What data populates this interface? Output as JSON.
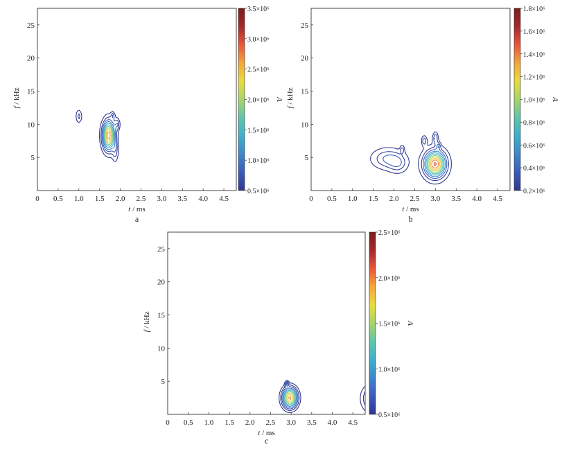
{
  "chart_data": [
    {
      "panel_label": "a",
      "type": "contour",
      "xlabel_italic": "t",
      "xlabel_unit": " / ms",
      "ylabel_italic": "f",
      "ylabel_unit": " / kHz",
      "xlim": [
        0,
        4.8
      ],
      "ylim": [
        0,
        27.5
      ],
      "xticks": [
        0,
        0.5,
        1.0,
        1.5,
        2.0,
        2.5,
        3.0,
        3.5,
        4.0,
        4.5
      ],
      "xticklabels": [
        "0",
        "0.5",
        "1.0",
        "1.5",
        "2.0",
        "2.5",
        "3.0",
        "3.5",
        "4.0",
        "4.5"
      ],
      "yticks": [
        5,
        10,
        15,
        20,
        25
      ],
      "yticklabels": [
        "5",
        "10",
        "15",
        "20",
        "25"
      ],
      "colorbar": {
        "label": "A",
        "range": [
          0.5,
          3.5
        ],
        "ticks": [
          0.5,
          1.0,
          1.5,
          2.0,
          2.5,
          3.0,
          3.5
        ],
        "ticklabels": [
          "0.5×10⁶",
          "1.0×10⁶",
          "1.5×10⁶",
          "2.0×10⁶",
          "2.5×10⁶",
          "3.0×10⁶",
          "3.5×10⁶"
        ]
      },
      "peaks": [
        {
          "t": 1.72,
          "f": 8.3,
          "sigma_t": 0.1,
          "sigma_f": 1.5,
          "amplitude": 2.9
        },
        {
          "t": 1.0,
          "f": 11.2,
          "sigma_t": 0.05,
          "sigma_f": 0.7,
          "amplitude": 0.62
        },
        {
          "t": 1.82,
          "f": 11.3,
          "sigma_t": 0.03,
          "sigma_f": 0.4,
          "amplitude": 0.58
        },
        {
          "t": 1.93,
          "f": 10.0,
          "sigma_t": 0.04,
          "sigma_f": 0.6,
          "amplitude": 0.7
        },
        {
          "t": 1.88,
          "f": 6.0,
          "sigma_t": 0.05,
          "sigma_f": 1.2,
          "amplitude": 0.6
        }
      ]
    },
    {
      "panel_label": "b",
      "type": "contour",
      "xlabel_italic": "t",
      "xlabel_unit": " / ms",
      "ylabel_italic": "f",
      "ylabel_unit": " / kHz",
      "xlim": [
        0,
        4.8
      ],
      "ylim": [
        0,
        27.5
      ],
      "xticks": [
        0,
        0.5,
        1.0,
        1.5,
        2.0,
        2.5,
        3.0,
        3.5,
        4.0,
        4.5
      ],
      "xticklabels": [
        "0",
        "0.5",
        "1.0",
        "1.5",
        "2.0",
        "2.5",
        "3.0",
        "3.5",
        "4.0",
        "4.5"
      ],
      "yticks": [
        5,
        10,
        15,
        20,
        25
      ],
      "yticklabels": [
        "5",
        "10",
        "15",
        "20",
        "25"
      ],
      "colorbar": {
        "label": "A",
        "range": [
          0.2,
          1.8
        ],
        "ticks": [
          0.2,
          0.4,
          0.6,
          0.8,
          1.0,
          1.2,
          1.4,
          1.6,
          1.8
        ],
        "ticklabels": [
          "0.2×10⁶",
          "0.4×10⁶",
          "0.6×10⁶",
          "0.8×10⁶",
          "1.0×10⁶",
          "1.2×10⁶",
          "1.4×10⁶",
          "1.6×10⁶",
          "1.8×10⁶"
        ]
      },
      "peaks": [
        {
          "t": 2.99,
          "f": 4.0,
          "sigma_t": 0.17,
          "sigma_f": 1.3,
          "amplitude": 1.55
        },
        {
          "t": 1.85,
          "f": 4.8,
          "sigma_t": 0.25,
          "sigma_f": 1.0,
          "amplitude": 0.42
        },
        {
          "t": 2.1,
          "f": 4.0,
          "sigma_t": 0.15,
          "sigma_f": 0.9,
          "amplitude": 0.28
        },
        {
          "t": 2.73,
          "f": 7.5,
          "sigma_t": 0.04,
          "sigma_f": 0.5,
          "amplitude": 0.36
        },
        {
          "t": 3.0,
          "f": 7.9,
          "sigma_t": 0.04,
          "sigma_f": 0.6,
          "amplitude": 0.4
        },
        {
          "t": 3.07,
          "f": 6.7,
          "sigma_t": 0.03,
          "sigma_f": 0.4,
          "amplitude": 0.36
        },
        {
          "t": 2.2,
          "f": 6.2,
          "sigma_t": 0.03,
          "sigma_f": 0.4,
          "amplitude": 0.3
        }
      ]
    },
    {
      "panel_label": "c",
      "type": "contour",
      "xlabel_italic": "t",
      "xlabel_unit": " / ms",
      "ylabel_italic": "f",
      "ylabel_unit": " / kHz",
      "xlim": [
        0,
        4.8
      ],
      "ylim": [
        0,
        27.5
      ],
      "xticks": [
        0,
        0.5,
        1.0,
        1.5,
        2.0,
        2.5,
        3.0,
        3.5,
        4.0,
        4.5
      ],
      "xticklabels": [
        "0",
        "0.5",
        "1.0",
        "1.5",
        "2.0",
        "2.5",
        "3.0",
        "3.5",
        "4.0",
        "4.5"
      ],
      "yticks": [
        5,
        10,
        15,
        20,
        25
      ],
      "yticklabels": [
        "5",
        "10",
        "15",
        "20",
        "25"
      ],
      "colorbar": {
        "label": "A",
        "range": [
          0.5,
          2.5
        ],
        "ticks": [
          0.5,
          1.0,
          1.5,
          2.0,
          2.5
        ],
        "ticklabels": [
          "0.5×10⁶",
          "1.0×10⁶",
          "1.5×10⁶",
          "2.0×10⁶",
          "2.5×10⁶"
        ]
      },
      "peaks": [
        {
          "t": 2.97,
          "f": 2.5,
          "sigma_t": 0.13,
          "sigma_f": 1.1,
          "amplitude": 2.0
        },
        {
          "t": 2.9,
          "f": 4.6,
          "sigma_t": 0.03,
          "sigma_f": 0.3,
          "amplitude": 0.65
        },
        {
          "t": 4.95,
          "f": 2.4,
          "sigma_t": 0.18,
          "sigma_f": 1.5,
          "amplitude": 0.8
        }
      ]
    }
  ],
  "colormap": [
    "#30378f",
    "#3b5bbd",
    "#3f86c9",
    "#3db0cd",
    "#5ec6a8",
    "#a8d468",
    "#e8dc3e",
    "#f4a73a",
    "#e8563a",
    "#a5282b",
    "#7a1c1c"
  ]
}
